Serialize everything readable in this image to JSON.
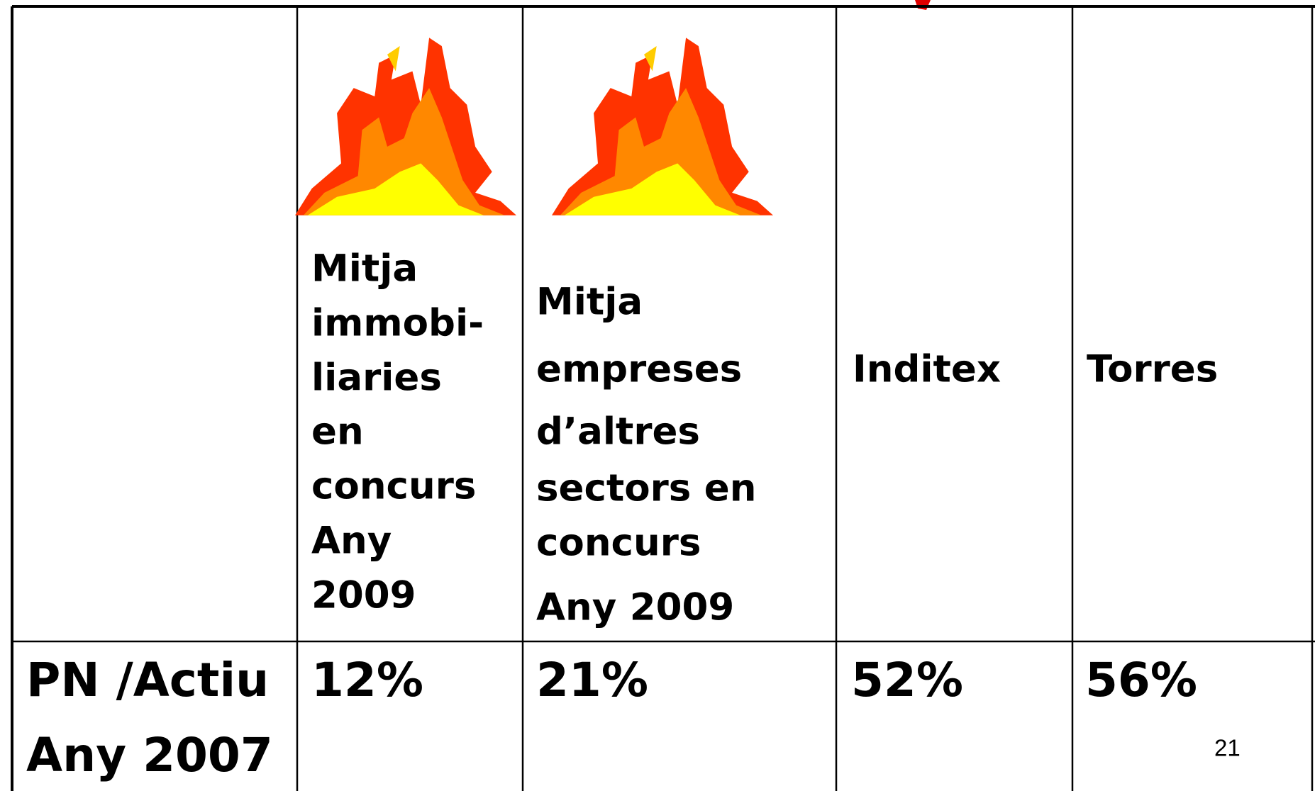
{
  "table": {
    "columns": [
      [
        "Mitja",
        "immobi-",
        "liaries",
        "en",
        "concurs",
        "Any",
        "2009"
      ],
      [
        "Mitja",
        "empreses",
        "d’altres",
        "sectors en",
        "concurs",
        "Any 2009"
      ],
      [
        "Inditex"
      ],
      [
        "Torres"
      ]
    ],
    "row_header": [
      "PN /Actiu",
      "Any 2007"
    ],
    "values": [
      "12%",
      "21%",
      "52%",
      "56%"
    ]
  },
  "page_number": "21"
}
